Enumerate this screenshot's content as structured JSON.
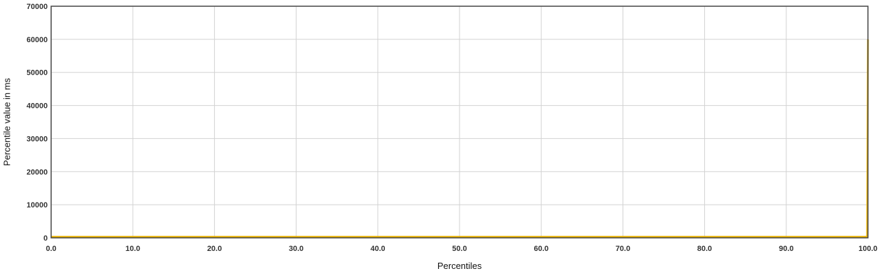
{
  "chart_data": {
    "type": "line",
    "title": "",
    "xlabel": "Percentiles",
    "ylabel": "Percentile value in ms",
    "xlim": [
      0,
      100
    ],
    "ylim": [
      0,
      70000
    ],
    "x_ticks": [
      "0.0",
      "10.0",
      "20.0",
      "30.0",
      "40.0",
      "50.0",
      "60.0",
      "70.0",
      "80.0",
      "90.0",
      "100.0"
    ],
    "y_ticks": [
      "0",
      "10000",
      "20000",
      "30000",
      "40000",
      "50000",
      "60000",
      "70000"
    ],
    "grid": true,
    "legend": "none",
    "series": [
      {
        "color": "#e8b000",
        "x": [
          0,
          10,
          20,
          30,
          40,
          50,
          60,
          70,
          80,
          90,
          99.9,
          100
        ],
        "y": [
          300,
          300,
          300,
          300,
          300,
          300,
          300,
          300,
          300,
          300,
          300,
          60000
        ]
      }
    ]
  }
}
